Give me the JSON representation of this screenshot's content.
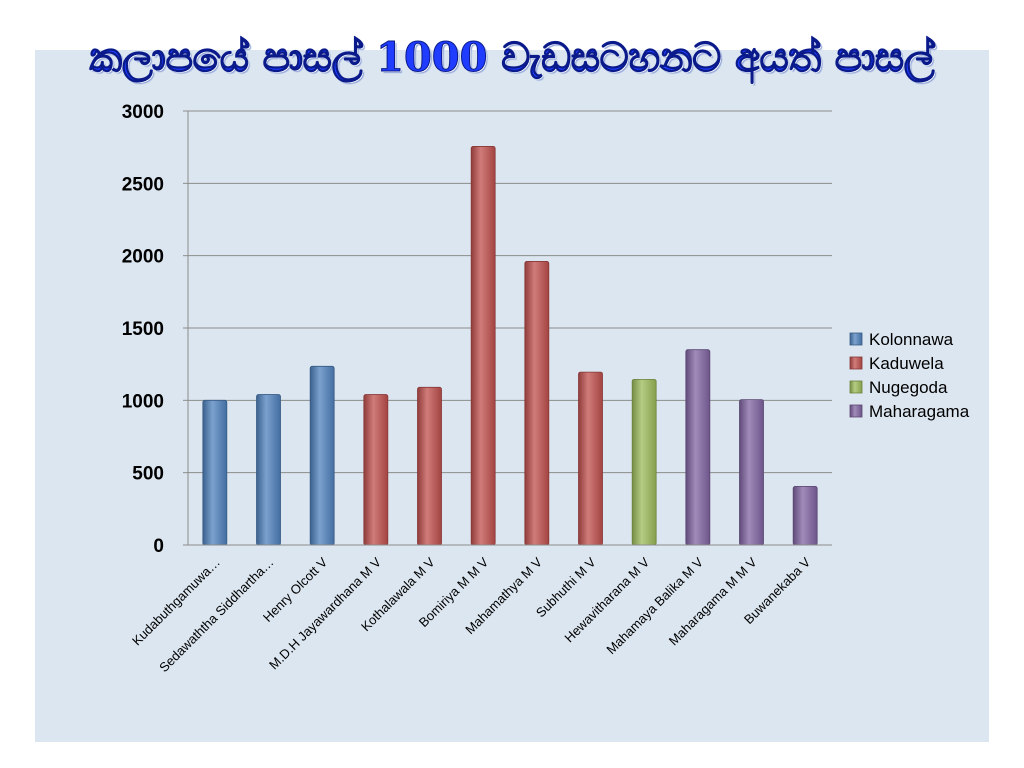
{
  "title": "කලාපයේ පාසල් 1000 වැඩසටහනට අයත් පාසල්",
  "chart_data": {
    "type": "bar",
    "title": "කලාපයේ පාසල් 1000 වැඩසටහනට අයත් පාසල්",
    "xlabel": "",
    "ylabel": "",
    "ylim": [
      0,
      3000
    ],
    "y_ticks": [
      "0",
      "500",
      "1000",
      "1500",
      "2000",
      "2500",
      "3000"
    ],
    "grid": true,
    "legend_position": "right",
    "categories": [
      "Kudabuthgamuwa…",
      "Sedawaththa Siddhartha…",
      "Henry Olcott V",
      "M.D.H Jayawardhana M V",
      "Kothalawala M V",
      "Bomiriya M M V",
      "Mahamathya M V",
      "Subhuthi M V",
      "Hewavitharana M V",
      "Mahamaya Balika M V",
      "Maharagama M M V",
      "Buwanekaba V"
    ],
    "series": [
      {
        "name": "Kolonnawa",
        "color": "#4f81bd",
        "values": [
          1000,
          1040,
          1235,
          null,
          null,
          null,
          null,
          null,
          null,
          null,
          null,
          null
        ]
      },
      {
        "name": "Kaduwela",
        "color": "#c0504d",
        "values": [
          null,
          null,
          null,
          1040,
          1090,
          2755,
          1960,
          1195,
          null,
          null,
          null,
          null
        ]
      },
      {
        "name": "Nugegoda",
        "color": "#9bbb59",
        "values": [
          null,
          null,
          null,
          null,
          null,
          null,
          null,
          null,
          1145,
          null,
          null,
          null
        ]
      },
      {
        "name": "Maharagama",
        "color": "#8064a2",
        "values": [
          null,
          null,
          null,
          null,
          null,
          null,
          null,
          null,
          null,
          1350,
          1005,
          405
        ]
      }
    ]
  }
}
